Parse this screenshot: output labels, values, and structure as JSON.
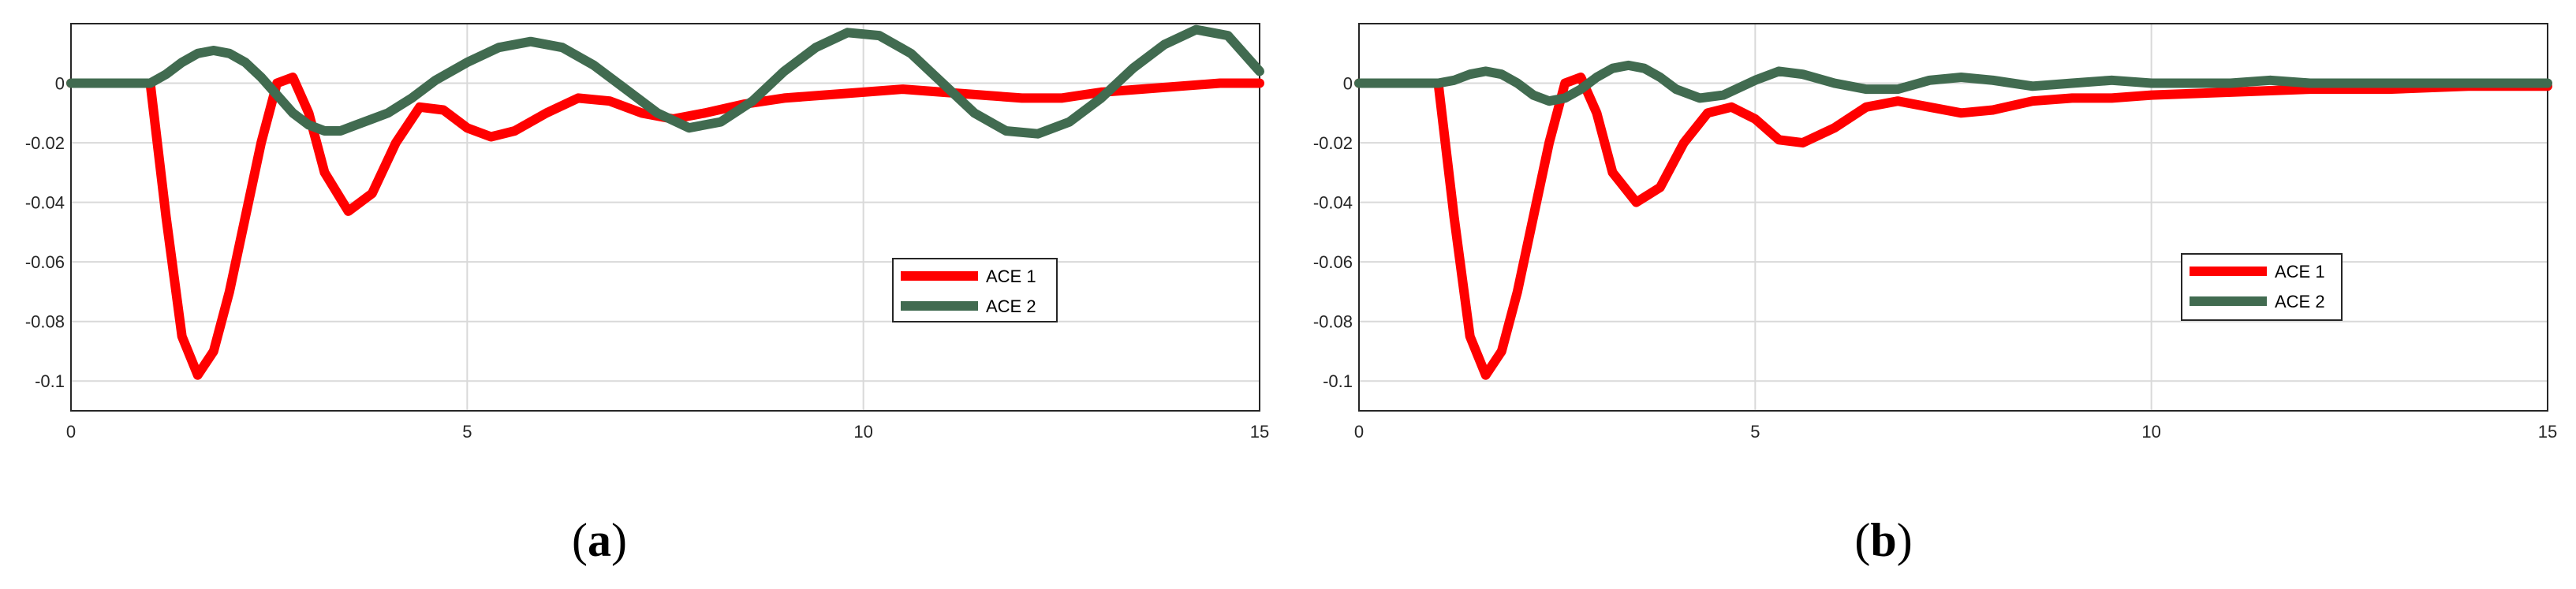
{
  "chart_data": [
    {
      "type": "line",
      "caption": {
        "open": "(",
        "letter": "a",
        "close": ")"
      },
      "xlim": [
        0,
        15
      ],
      "ylim": [
        -0.11,
        0.02
      ],
      "x_ticks": [
        0,
        5,
        10,
        15
      ],
      "y_ticks": [
        0,
        -0.02,
        -0.04,
        -0.06,
        -0.08,
        -0.1
      ],
      "x_tick_labels": [
        "0",
        "5",
        "10",
        "15"
      ],
      "y_tick_labels": [
        "0",
        "-0.02",
        "-0.04",
        "-0.06",
        "-0.08",
        "-0.1"
      ],
      "grid": true,
      "legend_position": "lower-right",
      "series": [
        {
          "name": "ACE 1",
          "color": "#ff0000",
          "x": [
            0,
            1,
            1.2,
            1.4,
            1.6,
            1.8,
            2.0,
            2.2,
            2.4,
            2.6,
            2.8,
            3.0,
            3.2,
            3.5,
            3.8,
            4.1,
            4.4,
            4.7,
            5.0,
            5.3,
            5.6,
            6.0,
            6.4,
            6.8,
            7.2,
            7.6,
            8.0,
            8.5,
            9.0,
            9.5,
            10.0,
            10.5,
            11.0,
            11.5,
            12.0,
            12.5,
            13.0,
            13.5,
            14.0,
            14.5,
            15.0
          ],
          "y": [
            0,
            0,
            -0.045,
            -0.085,
            -0.098,
            -0.09,
            -0.07,
            -0.045,
            -0.02,
            0.0,
            0.002,
            -0.01,
            -0.03,
            -0.043,
            -0.037,
            -0.02,
            -0.008,
            -0.009,
            -0.015,
            -0.018,
            -0.016,
            -0.01,
            -0.005,
            -0.006,
            -0.01,
            -0.012,
            -0.01,
            -0.007,
            -0.005,
            -0.004,
            -0.003,
            -0.002,
            -0.003,
            -0.004,
            -0.005,
            -0.005,
            -0.003,
            -0.002,
            -0.001,
            0.0,
            0.0
          ]
        },
        {
          "name": "ACE 2",
          "color": "#416b50",
          "x": [
            0,
            1.0,
            1.2,
            1.4,
            1.6,
            1.8,
            2.0,
            2.2,
            2.4,
            2.6,
            2.8,
            3.0,
            3.2,
            3.4,
            3.6,
            3.8,
            4.0,
            4.3,
            4.6,
            5.0,
            5.4,
            5.8,
            6.2,
            6.6,
            7.0,
            7.4,
            7.8,
            8.2,
            8.6,
            9.0,
            9.4,
            9.8,
            10.2,
            10.6,
            11.0,
            11.4,
            11.8,
            12.2,
            12.6,
            13.0,
            13.4,
            13.8,
            14.2,
            14.6,
            15.0
          ],
          "y": [
            0,
            0,
            0.003,
            0.007,
            0.01,
            0.011,
            0.01,
            0.007,
            0.002,
            -0.004,
            -0.01,
            -0.014,
            -0.016,
            -0.016,
            -0.014,
            -0.012,
            -0.01,
            -0.005,
            0.001,
            0.007,
            0.012,
            0.014,
            0.012,
            0.006,
            -0.002,
            -0.01,
            -0.015,
            -0.013,
            -0.006,
            0.004,
            0.012,
            0.017,
            0.016,
            0.01,
            0.0,
            -0.01,
            -0.016,
            -0.017,
            -0.013,
            -0.005,
            0.005,
            0.013,
            0.018,
            0.016,
            0.004
          ]
        }
      ]
    },
    {
      "type": "line",
      "caption": {
        "open": "(",
        "letter": "b",
        "close": ")"
      },
      "xlim": [
        0,
        15
      ],
      "ylim": [
        -0.11,
        0.02
      ],
      "x_ticks": [
        0,
        5,
        10,
        15
      ],
      "y_ticks": [
        0,
        -0.02,
        -0.04,
        -0.06,
        -0.08,
        -0.1
      ],
      "x_tick_labels": [
        "0",
        "5",
        "10",
        "15"
      ],
      "y_tick_labels": [
        "0",
        "-0.02",
        "-0.04",
        "-0.06",
        "-0.08",
        "-0.1"
      ],
      "grid": true,
      "legend_position": "lower-right",
      "series": [
        {
          "name": "ACE 1",
          "color": "#ff0000",
          "x": [
            0,
            1,
            1.2,
            1.4,
            1.6,
            1.8,
            2.0,
            2.2,
            2.4,
            2.6,
            2.8,
            3.0,
            3.2,
            3.5,
            3.8,
            4.1,
            4.4,
            4.7,
            5.0,
            5.3,
            5.6,
            6.0,
            6.4,
            6.8,
            7.2,
            7.6,
            8.0,
            8.5,
            9.0,
            9.5,
            10.0,
            11.0,
            12.0,
            13.0,
            14.0,
            15.0
          ],
          "y": [
            0,
            0,
            -0.045,
            -0.085,
            -0.098,
            -0.09,
            -0.07,
            -0.045,
            -0.02,
            0.0,
            0.002,
            -0.01,
            -0.03,
            -0.04,
            -0.035,
            -0.02,
            -0.01,
            -0.008,
            -0.012,
            -0.019,
            -0.02,
            -0.015,
            -0.008,
            -0.006,
            -0.008,
            -0.01,
            -0.009,
            -0.006,
            -0.005,
            -0.005,
            -0.004,
            -0.003,
            -0.002,
            -0.002,
            -0.001,
            -0.001
          ]
        },
        {
          "name": "ACE 2",
          "color": "#416b50",
          "x": [
            0,
            1.0,
            1.2,
            1.4,
            1.6,
            1.8,
            2.0,
            2.2,
            2.4,
            2.6,
            2.8,
            3.0,
            3.2,
            3.4,
            3.6,
            3.8,
            4.0,
            4.3,
            4.6,
            5.0,
            5.3,
            5.6,
            6.0,
            6.4,
            6.8,
            7.2,
            7.6,
            8.0,
            8.5,
            9.0,
            9.5,
            10.0,
            10.5,
            11.0,
            11.5,
            12.0,
            13.0,
            14.0,
            15.0
          ],
          "y": [
            0,
            0,
            0.001,
            0.003,
            0.004,
            0.003,
            0.0,
            -0.004,
            -0.006,
            -0.005,
            -0.002,
            0.002,
            0.005,
            0.006,
            0.005,
            0.002,
            -0.002,
            -0.005,
            -0.004,
            0.001,
            0.004,
            0.003,
            0.0,
            -0.002,
            -0.002,
            0.001,
            0.002,
            0.001,
            -0.001,
            0.0,
            0.001,
            0.0,
            0.0,
            0.0,
            0.001,
            0.0,
            0.0,
            0.0,
            0.0
          ]
        }
      ]
    }
  ]
}
